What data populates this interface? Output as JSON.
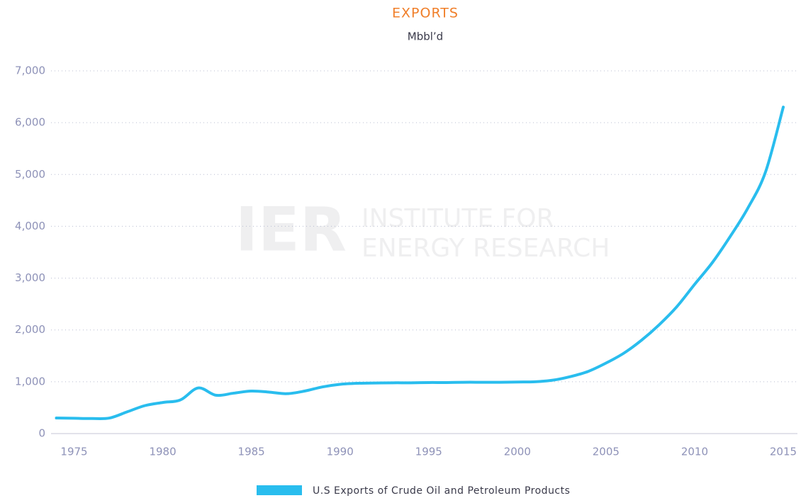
{
  "chart_data": {
    "type": "line",
    "title": "EXPORTS",
    "subtitle": "Mbbl’d",
    "watermark": {
      "mark": "IER",
      "line1": "INSTITUTE FOR",
      "line2": "ENERGY RESEARCH"
    },
    "x": [
      1974,
      1975,
      1976,
      1977,
      1978,
      1979,
      1980,
      1981,
      1982,
      1983,
      1984,
      1985,
      1986,
      1987,
      1988,
      1989,
      1990,
      1991,
      1992,
      1993,
      1994,
      1995,
      1996,
      1997,
      1998,
      1999,
      2000,
      2001,
      2002,
      2003,
      2004,
      2005,
      2006,
      2007,
      2008,
      2009,
      2010,
      2011,
      2012,
      2013,
      2014,
      2015
    ],
    "series": [
      {
        "name": "U.S Exports of Crude Oil and Petroleum Products",
        "color": "#29bdee",
        "values": [
          300,
          295,
          290,
          300,
          420,
          540,
          600,
          650,
          880,
          740,
          780,
          820,
          800,
          770,
          820,
          900,
          950,
          970,
          975,
          980,
          980,
          985,
          985,
          990,
          990,
          990,
          995,
          1000,
          1030,
          1100,
          1200,
          1360,
          1550,
          1800,
          2100,
          2450,
          2880,
          3300,
          3800,
          4350,
          5050,
          6300
        ]
      }
    ],
    "xlim": [
      1973.7,
      2015.8
    ],
    "xticks": [
      1975,
      1980,
      1985,
      1990,
      1995,
      2000,
      2005,
      2010,
      2015
    ],
    "ylim": [
      0,
      7000
    ],
    "yticks": [
      0,
      {
        "value": 1000,
        "label": "1,000"
      },
      {
        "value": 2000,
        "label": "2,000"
      },
      {
        "value": 3000,
        "label": "3,000"
      },
      {
        "value": 4000,
        "label": "4,000"
      },
      {
        "value": 5000,
        "label": "5,000"
      },
      {
        "value": 6000,
        "label": "6,000"
      },
      {
        "value": 7000,
        "label": "7,000"
      }
    ],
    "grid": true,
    "legend": "bottom"
  }
}
